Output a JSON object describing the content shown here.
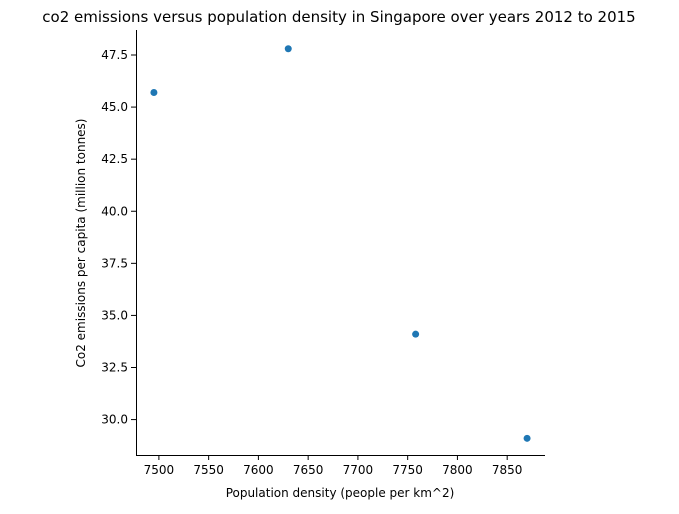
{
  "chart_data": {
    "type": "scatter",
    "title": "co2 emissions versus population density in Singapore over years 2012 to 2015",
    "xlabel": "Population density (people per km^2)",
    "ylabel": "Co2 emissions per capita (million tonnes)",
    "xlim": [
      7477,
      7888
    ],
    "ylim": [
      28.3,
      48.7
    ],
    "x_ticks": [
      7500,
      7550,
      7600,
      7650,
      7700,
      7750,
      7800,
      7850
    ],
    "x_tick_labels": [
      "7500",
      "7550",
      "7600",
      "7650",
      "7700",
      "7750",
      "7800",
      "7850"
    ],
    "y_ticks": [
      30.0,
      32.5,
      35.0,
      37.5,
      40.0,
      42.5,
      45.0,
      47.5
    ],
    "y_tick_labels": [
      "30.0",
      "32.5",
      "35.0",
      "37.5",
      "40.0",
      "42.5",
      "45.0",
      "47.5"
    ],
    "grid": false,
    "point_color": "#1f77b4",
    "points": [
      {
        "x": 7495,
        "y": 45.7
      },
      {
        "x": 7630,
        "y": 47.8
      },
      {
        "x": 7758,
        "y": 34.1
      },
      {
        "x": 7870,
        "y": 29.1
      }
    ]
  }
}
